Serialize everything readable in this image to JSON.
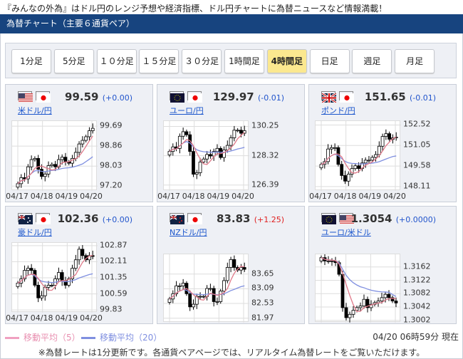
{
  "tagline": "『みんなの外為』はドル円のレンジ予想や経済指標、ドル円チャートに為替ニュースなど情報満載！",
  "header": {
    "title": "為替チャート（主要６通貨ペア）"
  },
  "timeframes": [
    {
      "label": "1分足",
      "active": false
    },
    {
      "label": "5分足",
      "active": false
    },
    {
      "label": "１０分足",
      "active": false
    },
    {
      "label": "１５分足",
      "active": false
    },
    {
      "label": "３０分足",
      "active": false
    },
    {
      "label": "1時間足",
      "active": false
    },
    {
      "label": "4時間足",
      "active": true
    },
    {
      "label": "日足",
      "active": false
    },
    {
      "label": "週足",
      "active": false
    },
    {
      "label": "月足",
      "active": false
    }
  ],
  "colors": {
    "header": "#17447f",
    "ma5": "#e07a8a",
    "ma20": "#7f8fe0",
    "up": "#ffffff",
    "down": "#000000",
    "change_down": "#2255cc",
    "change_up": "#e02020"
  },
  "cards": [
    {
      "pair": "米ドル/円",
      "flags": [
        "us",
        "jp"
      ],
      "price": "99.59",
      "change": "(+0.00)",
      "dir": "flat",
      "yticks": [
        "99.69",
        "98.86",
        "98.03",
        "97.20"
      ],
      "ylim": [
        97.0,
        99.9
      ],
      "dates": [
        "04/17",
        "04/18",
        "04/19",
        "04/20"
      ],
      "closes": [
        97.3,
        97.55,
        97.5,
        98.0,
        98.3,
        98.35,
        97.9,
        97.6,
        97.7,
        98.05,
        98.1,
        98.0,
        98.3,
        98.4,
        98.2,
        98.15,
        98.35,
        98.6,
        98.95,
        99.1,
        99.25,
        99.5,
        99.6
      ]
    },
    {
      "pair": "ユーロ/円",
      "flags": [
        "eu",
        "jp"
      ],
      "price": "129.97",
      "change": "(-0.01)",
      "dir": "down",
      "yticks": [
        "130.25",
        "128.32",
        "126.39"
      ],
      "ylim": [
        126.0,
        130.6
      ],
      "dates": [
        "04/17",
        "04/18",
        "04/19",
        "04/20"
      ],
      "closes": [
        128.6,
        128.9,
        128.8,
        129.6,
        129.9,
        129.7,
        128.6,
        127.1,
        127.2,
        127.9,
        128.1,
        128.4,
        128.3,
        128.6,
        128.8,
        128.2,
        128.7,
        129.0,
        129.5,
        130.0,
        130.0,
        129.8,
        129.97
      ]
    },
    {
      "pair": "ポンド/円",
      "flags": [
        "gb",
        "jp"
      ],
      "price": "151.65",
      "change": "(-0.01)",
      "dir": "down",
      "yticks": [
        "152.52",
        "151.05",
        "149.58",
        "148.11"
      ],
      "ylim": [
        147.8,
        152.8
      ],
      "dates": [
        "04/17",
        "04/18",
        "04/19",
        "04/20"
      ],
      "closes": [
        149.7,
        149.9,
        150.8,
        150.9,
        150.9,
        149.7,
        148.9,
        148.5,
        149.0,
        149.4,
        149.6,
        149.4,
        149.8,
        150.0,
        150.0,
        150.2,
        150.4,
        151.0,
        151.7,
        151.9,
        151.5,
        151.6,
        151.65
      ]
    },
    {
      "pair": "豪ドル/円",
      "flags": [
        "au",
        "jp"
      ],
      "price": "102.36",
      "change": "(+0.00)",
      "dir": "flat",
      "yticks": [
        "102.87",
        "102.11",
        "101.35",
        "100.59",
        "99.83"
      ],
      "ylim": [
        99.7,
        103.0
      ],
      "dates": [
        "04/17",
        "04/18",
        "04/19",
        "04/20"
      ],
      "closes": [
        101.1,
        101.3,
        101.7,
        101.8,
        101.7,
        101.0,
        100.4,
        100.5,
        100.9,
        101.0,
        101.0,
        101.3,
        101.6,
        101.2,
        101.0,
        101.3,
        101.8,
        102.2,
        102.7,
        102.4,
        102.2,
        102.4,
        102.36
      ]
    },
    {
      "pair": "NZドル/円",
      "flags": [
        "nz",
        "jp"
      ],
      "price": "83.83",
      "change": "(+1.25)",
      "dir": "up",
      "yticks": [
        "83.65",
        "83.09",
        "82.53",
        "81.97"
      ],
      "ylim": [
        81.8,
        84.4
      ],
      "dates": [
        "04/17",
        "04/18",
        "04/19",
        "04/20"
      ],
      "closes": [
        82.7,
        82.9,
        83.2,
        83.2,
        83.3,
        82.9,
        82.4,
        82.5,
        82.8,
        82.8,
        82.8,
        83.1,
        83.1,
        82.6,
        82.6,
        83.0,
        83.4,
        83.9,
        84.2,
        83.9,
        83.8,
        83.9,
        83.83
      ]
    },
    {
      "pair": "ユーロ/米ドル",
      "flags": [
        "eu",
        "us"
      ],
      "price": "1.3054",
      "change": "(+0.0000)",
      "dir": "flat",
      "yticks": [
        "1.3162",
        "1.3122",
        "1.3082",
        "1.3042",
        "1.3002"
      ],
      "ylim": [
        1.2995,
        1.32
      ],
      "dates": [
        "04/17",
        "04/18",
        "04/19",
        "04/20"
      ],
      "closes": [
        1.319,
        1.318,
        1.318,
        1.318,
        1.3175,
        1.314,
        1.304,
        1.301,
        1.302,
        1.3032,
        1.304,
        1.3045,
        1.3065,
        1.304,
        1.305,
        1.3055,
        1.306,
        1.307,
        1.308,
        1.307,
        1.306,
        1.3054
      ]
    }
  ],
  "legend": {
    "ma5": "移動平均（5）",
    "ma20": "移動平均（20）"
  },
  "timestamp": "04/20 06時59分 現在",
  "note": "※為替レートは1分更新です。各通貨ペアページでは、リアルタイム為替レートをご覧いただけます。"
}
